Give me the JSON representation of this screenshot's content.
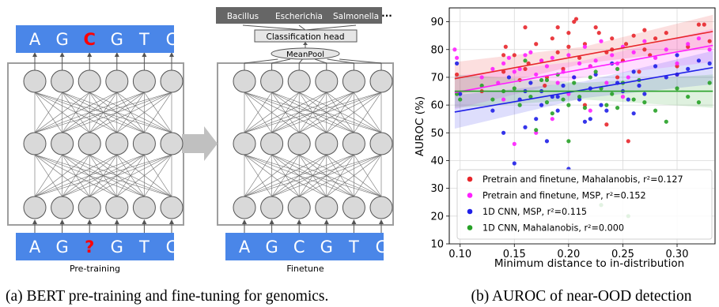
{
  "panel_a": {
    "left_top_tokens": [
      "A",
      "G",
      "C",
      "G",
      "T",
      "C"
    ],
    "left_bottom_tokens": [
      "A",
      "G",
      "?",
      "G",
      "T",
      "C"
    ],
    "right_bottom_tokens": [
      "A",
      "G",
      "C",
      "G",
      "T",
      "C"
    ],
    "left_label": "Pre-training",
    "right_label": "Finetune",
    "classes": [
      "Bacillus",
      "Escherichia",
      "Salmonella",
      "···"
    ],
    "head_label": "Classification head",
    "pool_label": "MeanPool",
    "colors": {
      "token_bg": "#4a86e8",
      "highlight": "#ff0000",
      "node_fill": "#d9d9d9",
      "class_bg": "#666666"
    }
  },
  "captions": {
    "a": "(a) BERT pre-training and fine-tuning for genomics.",
    "b": "(b) AUROC of near-OOD detection"
  },
  "chart_data": {
    "type": "scatter",
    "xlabel": "Minimum distance to in-distribution",
    "ylabel": "AUROC (%)",
    "xlim": [
      0.09,
      0.335
    ],
    "ylim": [
      10,
      95
    ],
    "xticks": [
      "0.10",
      "0.15",
      "0.20",
      "0.25",
      "0.30"
    ],
    "yticks": [
      "10",
      "20",
      "30",
      "40",
      "50",
      "60",
      "70",
      "80",
      "90"
    ],
    "grid": true,
    "legend_position": "bottom-right",
    "series": [
      {
        "name": "Pretrain and finetune, Mahalanobis, r²=0.127",
        "color": "#e8262b",
        "fit": [
          69.5,
          86.5
        ],
        "points": [
          [
            0.097,
            71
          ],
          [
            0.12,
            65
          ],
          [
            0.14,
            72
          ],
          [
            0.142,
            81
          ],
          [
            0.15,
            78
          ],
          [
            0.155,
            69
          ],
          [
            0.16,
            88
          ],
          [
            0.163,
            75
          ],
          [
            0.17,
            82
          ],
          [
            0.175,
            76
          ],
          [
            0.18,
            70
          ],
          [
            0.185,
            84
          ],
          [
            0.19,
            79
          ],
          [
            0.195,
            73
          ],
          [
            0.2,
            86
          ],
          [
            0.205,
            90
          ],
          [
            0.207,
            91
          ],
          [
            0.21,
            77
          ],
          [
            0.215,
            82
          ],
          [
            0.22,
            74
          ],
          [
            0.225,
            88
          ],
          [
            0.228,
            86
          ],
          [
            0.235,
            79
          ],
          [
            0.24,
            84
          ],
          [
            0.245,
            70
          ],
          [
            0.25,
            76
          ],
          [
            0.253,
            82
          ],
          [
            0.26,
            85
          ],
          [
            0.265,
            72
          ],
          [
            0.27,
            80
          ],
          [
            0.275,
            78
          ],
          [
            0.28,
            84
          ],
          [
            0.29,
            86
          ],
          [
            0.3,
            74
          ],
          [
            0.31,
            81
          ],
          [
            0.32,
            89
          ],
          [
            0.325,
            89
          ],
          [
            0.33,
            83
          ],
          [
            0.215,
            60
          ],
          [
            0.235,
            53
          ],
          [
            0.178,
            67
          ],
          [
            0.24,
            80
          ],
          [
            0.2,
            81
          ],
          [
            0.16,
            73
          ],
          [
            0.255,
            47
          ],
          [
            0.27,
            87
          ],
          [
            0.3,
            71
          ],
          [
            0.14,
            78
          ],
          [
            0.19,
            88
          ]
        ]
      },
      {
        "name": "Pretrain and finetune, MSP, r²=0.152",
        "color": "#ff1fff",
        "fit": [
          64.5,
          81.5
        ],
        "points": [
          [
            0.095,
            80
          ],
          [
            0.097,
            77
          ],
          [
            0.12,
            70
          ],
          [
            0.13,
            73
          ],
          [
            0.135,
            68
          ],
          [
            0.14,
            75
          ],
          [
            0.145,
            77
          ],
          [
            0.15,
            72
          ],
          [
            0.155,
            73
          ],
          [
            0.16,
            78
          ],
          [
            0.165,
            79
          ],
          [
            0.17,
            71
          ],
          [
            0.175,
            76
          ],
          [
            0.18,
            74
          ],
          [
            0.185,
            77
          ],
          [
            0.19,
            68
          ],
          [
            0.195,
            72
          ],
          [
            0.2,
            78
          ],
          [
            0.205,
            70
          ],
          [
            0.21,
            75
          ],
          [
            0.215,
            81
          ],
          [
            0.22,
            74
          ],
          [
            0.225,
            76
          ],
          [
            0.23,
            83
          ],
          [
            0.235,
            68
          ],
          [
            0.24,
            78
          ],
          [
            0.245,
            75
          ],
          [
            0.25,
            81
          ],
          [
            0.255,
            70
          ],
          [
            0.26,
            79
          ],
          [
            0.27,
            83
          ],
          [
            0.28,
            77
          ],
          [
            0.29,
            80
          ],
          [
            0.3,
            75
          ],
          [
            0.31,
            82
          ],
          [
            0.32,
            84
          ],
          [
            0.33,
            80
          ],
          [
            0.15,
            46
          ],
          [
            0.17,
            50
          ],
          [
            0.2,
            64
          ],
          [
            0.22,
            58
          ],
          [
            0.14,
            62
          ],
          [
            0.25,
            63
          ],
          [
            0.185,
            55
          ]
        ]
      },
      {
        "name": "1D CNN, MSP, r²=0.115",
        "color": "#1f1fe8",
        "fit": [
          57.5,
          73.5
        ],
        "points": [
          [
            0.097,
            75
          ],
          [
            0.1,
            64
          ],
          [
            0.13,
            58
          ],
          [
            0.14,
            50
          ],
          [
            0.145,
            70
          ],
          [
            0.15,
            39
          ],
          [
            0.155,
            62
          ],
          [
            0.16,
            65
          ],
          [
            0.165,
            68
          ],
          [
            0.17,
            55
          ],
          [
            0.175,
            60
          ],
          [
            0.18,
            47
          ],
          [
            0.185,
            63
          ],
          [
            0.19,
            58
          ],
          [
            0.195,
            67
          ],
          [
            0.2,
            37
          ],
          [
            0.205,
            70
          ],
          [
            0.21,
            62
          ],
          [
            0.215,
            54
          ],
          [
            0.22,
            66
          ],
          [
            0.225,
            71
          ],
          [
            0.23,
            60
          ],
          [
            0.235,
            58
          ],
          [
            0.24,
            75
          ],
          [
            0.245,
            68
          ],
          [
            0.25,
            65
          ],
          [
            0.255,
            62
          ],
          [
            0.26,
            72
          ],
          [
            0.265,
            67
          ],
          [
            0.27,
            64
          ],
          [
            0.28,
            74
          ],
          [
            0.29,
            70
          ],
          [
            0.3,
            71
          ],
          [
            0.31,
            73
          ],
          [
            0.32,
            76
          ],
          [
            0.33,
            75
          ],
          [
            0.175,
            65
          ],
          [
            0.22,
            55
          ],
          [
            0.26,
            57
          ],
          [
            0.3,
            78
          ],
          [
            0.16,
            52
          ],
          [
            0.19,
            63
          ]
        ]
      },
      {
        "name": "1D CNN, Mahalanobis, r²=0.000",
        "color": "#27a127",
        "fit": [
          65,
          65
        ],
        "points": [
          [
            0.097,
            64
          ],
          [
            0.1,
            62
          ],
          [
            0.12,
            67
          ],
          [
            0.13,
            62
          ],
          [
            0.14,
            65
          ],
          [
            0.15,
            66
          ],
          [
            0.155,
            60
          ],
          [
            0.16,
            76
          ],
          [
            0.165,
            63
          ],
          [
            0.17,
            51
          ],
          [
            0.175,
            69
          ],
          [
            0.18,
            61
          ],
          [
            0.185,
            57
          ],
          [
            0.19,
            71
          ],
          [
            0.195,
            62
          ],
          [
            0.2,
            60
          ],
          [
            0.205,
            68
          ],
          [
            0.21,
            63
          ],
          [
            0.215,
            59
          ],
          [
            0.22,
            70
          ],
          [
            0.225,
            72
          ],
          [
            0.23,
            66
          ],
          [
            0.235,
            60
          ],
          [
            0.24,
            64
          ],
          [
            0.245,
            59
          ],
          [
            0.25,
            68
          ],
          [
            0.255,
            20
          ],
          [
            0.26,
            62
          ],
          [
            0.265,
            69
          ],
          [
            0.27,
            61
          ],
          [
            0.28,
            58
          ],
          [
            0.29,
            54
          ],
          [
            0.3,
            66
          ],
          [
            0.31,
            63
          ],
          [
            0.32,
            61
          ],
          [
            0.33,
            68
          ],
          [
            0.23,
            24
          ],
          [
            0.2,
            47
          ],
          [
            0.245,
            73
          ],
          [
            0.18,
            69
          ]
        ]
      }
    ]
  }
}
